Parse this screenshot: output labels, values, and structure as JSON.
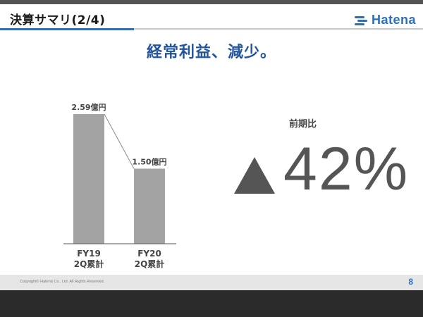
{
  "header": {
    "title": "決算サマリ(2/4)",
    "logo_text": "Hatena"
  },
  "headline": "経常利益、減少。",
  "chart_data": {
    "type": "bar",
    "categories": [
      "FY19\n2Q累計",
      "FY20\n2Q累計"
    ],
    "category_lines": [
      [
        "FY19",
        "2Q累計"
      ],
      [
        "FY20",
        "2Q累計"
      ]
    ],
    "values": [
      2.59,
      1.5
    ],
    "data_labels": [
      "2.59億円",
      "1.50億円"
    ],
    "unit": "億円",
    "ylim": [
      0,
      2.59
    ],
    "grid": false,
    "bar_color": "#a3a3a3"
  },
  "comparison": {
    "label": "前期比",
    "value": "42",
    "unit": "%",
    "direction_icon": "triangle-up-icon"
  },
  "footer": {
    "copyright": "Copyright© Hatena Co., Ltd.    All Rights Reserved.",
    "page_number": "8"
  },
  "colors": {
    "accent": "#2a6fb8",
    "headline": "#23559e",
    "bar": "#a3a3a3",
    "dark_band": "#2b2b2b"
  }
}
